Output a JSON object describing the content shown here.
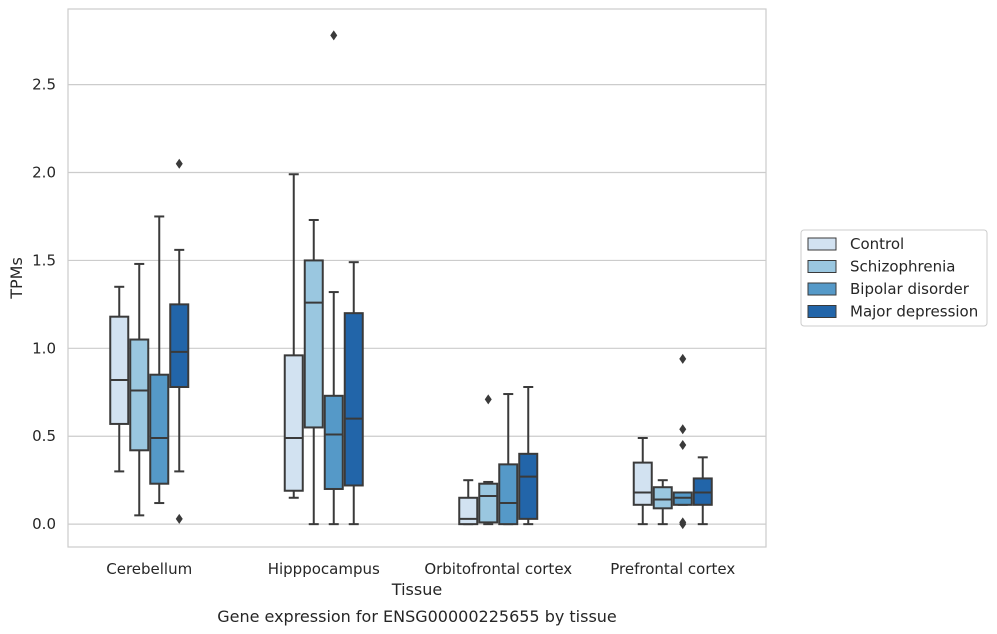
{
  "caption": "Gene expression for ENSG00000225655 by tissue",
  "chart_data": {
    "type": "box",
    "xlabel": "Tissue",
    "ylabel": "TPMs",
    "ylim": [
      -0.13,
      2.93
    ],
    "yticks": [
      0.0,
      0.5,
      1.0,
      1.5,
      2.0,
      2.5
    ],
    "ytick_labels": [
      "0.0",
      "0.5",
      "1.0",
      "1.5",
      "2.0",
      "2.5"
    ],
    "grid": "horizontal",
    "legend_position": "right",
    "categories": [
      "Cerebellum",
      "Hipppocampus",
      "Orbitofrontal cortex",
      "Prefrontal cortex"
    ],
    "series": [
      {
        "name": "Control",
        "color": "#d2e2f1",
        "boxes": [
          {
            "whislo": 0.3,
            "q1": 0.57,
            "med": 0.82,
            "q3": 1.18,
            "whishi": 1.35,
            "fliers": []
          },
          {
            "whislo": 0.15,
            "q1": 0.19,
            "med": 0.49,
            "q3": 0.96,
            "whishi": 1.99,
            "fliers": []
          },
          {
            "whislo": 0.0,
            "q1": 0.0,
            "med": 0.03,
            "q3": 0.15,
            "whishi": 0.25,
            "fliers": []
          },
          {
            "whislo": 0.0,
            "q1": 0.11,
            "med": 0.18,
            "q3": 0.35,
            "whishi": 0.49,
            "fliers": []
          }
        ]
      },
      {
        "name": "Schizophrenia",
        "color": "#9ac7e0",
        "boxes": [
          {
            "whislo": 0.05,
            "q1": 0.42,
            "med": 0.76,
            "q3": 1.05,
            "whishi": 1.48,
            "fliers": []
          },
          {
            "whislo": 0.0,
            "q1": 0.55,
            "med": 1.26,
            "q3": 1.5,
            "whishi": 1.73,
            "fliers": []
          },
          {
            "whislo": 0.0,
            "q1": 0.01,
            "med": 0.16,
            "q3": 0.23,
            "whishi": 0.24,
            "fliers": [
              0.71
            ]
          },
          {
            "whislo": 0.0,
            "q1": 0.09,
            "med": 0.14,
            "q3": 0.21,
            "whishi": 0.25,
            "fliers": []
          }
        ]
      },
      {
        "name": "Bipolar disorder",
        "color": "#5599c8",
        "boxes": [
          {
            "whislo": 0.12,
            "q1": 0.23,
            "med": 0.49,
            "q3": 0.85,
            "whishi": 1.75,
            "fliers": []
          },
          {
            "whislo": 0.0,
            "q1": 0.2,
            "med": 0.51,
            "q3": 0.73,
            "whishi": 1.32,
            "fliers": [
              2.78
            ]
          },
          {
            "whislo": 0.0,
            "q1": 0.0,
            "med": 0.12,
            "q3": 0.34,
            "whishi": 0.74,
            "fliers": []
          },
          {
            "whislo": 0.11,
            "q1": 0.11,
            "med": 0.15,
            "q3": 0.18,
            "whishi": 0.18,
            "fliers": [
              0.0,
              0.01,
              0.45,
              0.54,
              0.94
            ]
          }
        ]
      },
      {
        "name": "Major depression",
        "color": "#2265a9",
        "boxes": [
          {
            "whislo": 0.3,
            "q1": 0.78,
            "med": 0.98,
            "q3": 1.25,
            "whishi": 1.56,
            "fliers": [
              0.03,
              2.05
            ]
          },
          {
            "whislo": 0.0,
            "q1": 0.22,
            "med": 0.6,
            "q3": 1.2,
            "whishi": 1.49,
            "fliers": []
          },
          {
            "whislo": 0.0,
            "q1": 0.03,
            "med": 0.27,
            "q3": 0.4,
            "whishi": 0.78,
            "fliers": []
          },
          {
            "whislo": 0.0,
            "q1": 0.11,
            "med": 0.18,
            "q3": 0.26,
            "whishi": 0.38,
            "fliers": []
          }
        ]
      }
    ]
  }
}
